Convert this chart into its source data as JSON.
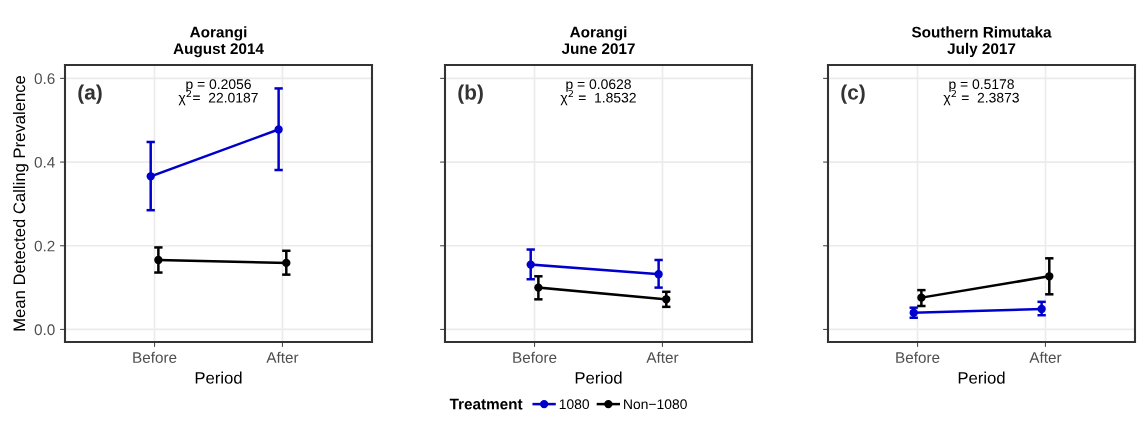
{
  "chart_data": [
    {
      "type": "line",
      "title": "Aorangi\nAugust 2014",
      "xlabel": "Period",
      "ylabel": "Mean Detected Calling Prevalence",
      "categories": [
        "Before",
        "After"
      ],
      "series": [
        {
          "name": "1080",
          "color": "#0000cc",
          "values": [
            0.366,
            0.478
          ],
          "errors": [
            [
              0.285,
              0.448
            ],
            [
              0.381,
              0.576
            ]
          ]
        },
        {
          "name": "Non−1080",
          "color": "#000000",
          "values": [
            0.166,
            0.159
          ],
          "errors": [
            [
              0.136,
              0.196
            ],
            [
              0.131,
              0.188
            ]
          ]
        }
      ],
      "ylim": [
        -0.03,
        0.632
      ],
      "yticks": [
        {
          "value": 0,
          "label": "0.0"
        },
        0.2,
        0.4,
        0.6
      ],
      "grid": true,
      "marker": "circle",
      "line_style": "solid",
      "legend": "bottom",
      "legend_title": "Treatment",
      "annotations": [
        "(a)",
        "p = 0.2056\nχ$^{2}$=  22.0187"
      ]
    },
    {
      "type": "line",
      "title": "Aorangi\nJune 2017",
      "xlabel": "Period",
      "categories": [
        "Before",
        "After"
      ],
      "series": [
        {
          "color": "#0000cc",
          "values": [
            0.155,
            0.132
          ],
          "errors": [
            [
              0.12,
              0.191
            ],
            [
              0.1,
              0.166
            ]
          ]
        },
        {
          "color": "#000000",
          "values": [
            0.1,
            0.072
          ],
          "errors": [
            [
              0.072,
              0.127
            ],
            [
              0.054,
              0.09
            ]
          ]
        }
      ],
      "ylim": [
        -0.03,
        0.632
      ],
      "yticks": [
        0,
        0.2,
        0.4,
        0.6
      ],
      "tick_labels": "x",
      "grid": true,
      "marker": "circle",
      "line_style": "solid",
      "annotations": [
        "(b)",
        "p = 0.0628\nχ$^{2}$ =  1.8532"
      ]
    },
    {
      "type": "line",
      "title": "Southern Rimutaka\nJuly 2017",
      "xlabel": "Period",
      "categories": [
        "Before",
        "After"
      ],
      "series": [
        {
          "color": "#0000cc",
          "values": [
            0.04,
            0.049
          ],
          "errors": [
            [
              0.028,
              0.052
            ],
            [
              0.034,
              0.066
            ]
          ]
        },
        {
          "color": "#000000",
          "values": [
            0.076,
            0.127
          ],
          "errors": [
            [
              0.056,
              0.094
            ],
            [
              0.084,
              0.17
            ]
          ]
        }
      ],
      "ylim": [
        -0.03,
        0.632
      ],
      "yticks": [
        0,
        0.2,
        0.4,
        0.6
      ],
      "tick_labels": "x",
      "grid": true,
      "marker": "circle",
      "line_style": "solid",
      "annotations": [
        "(c)",
        "p = 0.5178\nχ$^{2}$ =  2.3873"
      ]
    }
  ]
}
